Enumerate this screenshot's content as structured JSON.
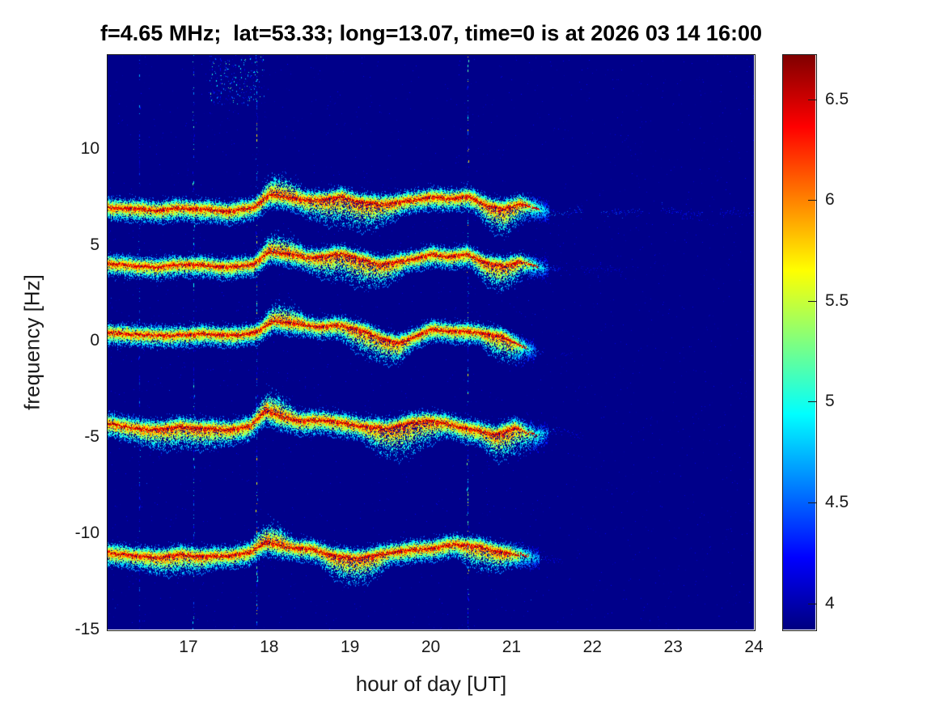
{
  "figure": {
    "background_color": "#ffffff",
    "text_color": "#1a1a1a"
  },
  "chart_data": {
    "type": "heatmap",
    "title": "f=4.65 MHz;  lat=53.33; long=13.07, time=0 is at 2026 03 14 16:00",
    "xlabel": "hour of day [UT]",
    "ylabel": "frequency [Hz]",
    "xlim": [
      16,
      24
    ],
    "ylim": [
      -15,
      14.87
    ],
    "xticks": [
      17,
      18,
      19,
      20,
      21,
      22,
      23,
      24
    ],
    "yticks": [
      10,
      5,
      0,
      -5,
      -10,
      -15
    ],
    "grid": false,
    "legend": "none",
    "colormap": "jet",
    "colorbar": {
      "min": 3.87,
      "max": 6.72,
      "ticks": [
        4,
        4.5,
        5,
        5.5,
        6,
        6.5
      ],
      "position": "right"
    },
    "background_value": 3.9,
    "background_color": "#00008a",
    "traces": [
      {
        "name": "doppler-trace-plus7Hz",
        "points": [
          [
            16,
            6.95
          ],
          [
            16.3,
            6.9
          ],
          [
            16.6,
            6.8
          ],
          [
            16.9,
            6.92
          ],
          [
            17.2,
            6.85
          ],
          [
            17.5,
            6.75
          ],
          [
            17.8,
            6.95
          ],
          [
            18.0,
            7.6
          ],
          [
            18.2,
            7.5
          ],
          [
            18.45,
            7.32
          ],
          [
            18.7,
            7.38
          ],
          [
            18.9,
            7.5
          ],
          [
            19.1,
            7.25
          ],
          [
            19.35,
            7.12
          ],
          [
            19.6,
            7.22
          ],
          [
            19.8,
            7.35
          ],
          [
            20.0,
            7.5
          ],
          [
            20.2,
            7.4
          ],
          [
            20.45,
            7.52
          ],
          [
            20.7,
            7.05
          ],
          [
            20.9,
            6.85
          ],
          [
            21.1,
            7.15
          ],
          [
            21.35,
            6.85
          ],
          [
            21.6,
            6.6
          ],
          [
            22.0,
            6.85
          ],
          [
            22.4,
            6.6
          ],
          [
            22.8,
            6.9
          ],
          [
            23.2,
            6.55
          ],
          [
            23.6,
            6.75
          ],
          [
            24,
            6.6
          ]
        ],
        "fade_start": 21.05,
        "fade_end": 21.5,
        "tail": {
          "level": 0.24,
          "end": 24
        },
        "dips": [
          [
            18.35,
            19.65,
            0.75
          ],
          [
            20.55,
            21.2,
            0.6
          ]
        ],
        "flares": [
          [
            17.85,
            18.45,
            0.5
          ]
        ],
        "spread_above": 0.48,
        "spread_below": 0.62
      },
      {
        "name": "doppler-trace-plus4Hz",
        "points": [
          [
            16,
            4.05
          ],
          [
            16.3,
            3.95
          ],
          [
            16.6,
            3.85
          ],
          [
            16.9,
            4.0
          ],
          [
            17.2,
            3.95
          ],
          [
            17.5,
            3.85
          ],
          [
            17.8,
            4.0
          ],
          [
            18.0,
            4.65
          ],
          [
            18.2,
            4.55
          ],
          [
            18.45,
            4.35
          ],
          [
            18.7,
            4.42
          ],
          [
            18.9,
            4.55
          ],
          [
            19.1,
            4.3
          ],
          [
            19.35,
            4.0
          ],
          [
            19.6,
            4.12
          ],
          [
            19.8,
            4.3
          ],
          [
            20.0,
            4.5
          ],
          [
            20.2,
            4.4
          ],
          [
            20.45,
            4.5
          ],
          [
            20.7,
            4.05
          ],
          [
            20.9,
            3.9
          ],
          [
            21.1,
            4.15
          ],
          [
            21.35,
            3.85
          ],
          [
            21.7,
            3.6
          ],
          [
            22.1,
            3.75
          ],
          [
            22.5,
            3.6
          ]
        ],
        "fade_start": 21.0,
        "fade_end": 21.55,
        "tail": {
          "level": 0.14,
          "end": 22.5
        },
        "dips": [
          [
            18.4,
            19.7,
            0.7
          ],
          [
            20.5,
            21.2,
            0.55
          ]
        ],
        "flares": [
          [
            17.85,
            18.45,
            0.45
          ]
        ],
        "spread_above": 0.45,
        "spread_below": 0.6
      },
      {
        "name": "doppler-trace-0Hz",
        "points": [
          [
            16,
            0.45
          ],
          [
            16.4,
            0.35
          ],
          [
            16.8,
            0.3
          ],
          [
            17.2,
            0.38
          ],
          [
            17.6,
            0.3
          ],
          [
            17.85,
            0.5
          ],
          [
            18.05,
            1.05
          ],
          [
            18.3,
            0.92
          ],
          [
            18.6,
            0.75
          ],
          [
            18.9,
            0.82
          ],
          [
            19.15,
            0.55
          ],
          [
            19.4,
            0.12
          ],
          [
            19.6,
            -0.12
          ],
          [
            19.8,
            0.25
          ],
          [
            20.0,
            0.6
          ],
          [
            20.3,
            0.52
          ],
          [
            20.6,
            0.45
          ],
          [
            20.9,
            0.2
          ],
          [
            21.1,
            -0.2
          ],
          [
            21.35,
            -0.65
          ]
        ],
        "fade_start": 20.9,
        "fade_end": 21.4,
        "tail": {
          "level": 0.12,
          "end": 21.75
        },
        "dips": [
          [
            18.8,
            19.8,
            0.6
          ],
          [
            20.6,
            21.2,
            0.5
          ]
        ],
        "flares": [
          [
            17.9,
            18.45,
            0.45
          ]
        ],
        "spread_above": 0.45,
        "spread_below": 0.58
      },
      {
        "name": "doppler-trace-minus4.5Hz",
        "points": [
          [
            16,
            -4.25
          ],
          [
            16.3,
            -4.5
          ],
          [
            16.6,
            -4.62
          ],
          [
            16.9,
            -4.45
          ],
          [
            17.2,
            -4.55
          ],
          [
            17.5,
            -4.6
          ],
          [
            17.75,
            -4.45
          ],
          [
            17.95,
            -3.6
          ],
          [
            18.15,
            -3.95
          ],
          [
            18.4,
            -4.15
          ],
          [
            18.7,
            -4.1
          ],
          [
            18.95,
            -4.3
          ],
          [
            19.2,
            -4.45
          ],
          [
            19.45,
            -4.55
          ],
          [
            19.7,
            -4.3
          ],
          [
            19.95,
            -4.12
          ],
          [
            20.2,
            -4.3
          ],
          [
            20.5,
            -4.6
          ],
          [
            20.8,
            -4.85
          ],
          [
            21.05,
            -4.5
          ],
          [
            21.3,
            -4.9
          ],
          [
            21.6,
            -4.6
          ],
          [
            21.9,
            -5.0
          ]
        ],
        "fade_start": 20.95,
        "fade_end": 21.55,
        "tail": {
          "level": 0.16,
          "end": 22.0
        },
        "dips": [
          [
            16.3,
            17.6,
            0.35
          ],
          [
            19.15,
            20.15,
            0.85
          ],
          [
            20.6,
            21.3,
            0.65
          ]
        ],
        "flares": [
          [
            17.8,
            18.35,
            0.5
          ]
        ],
        "spread_above": 0.5,
        "spread_below": 0.68
      },
      {
        "name": "doppler-trace-minus11Hz",
        "points": [
          [
            16,
            -11.0
          ],
          [
            16.3,
            -11.15
          ],
          [
            16.6,
            -11.25
          ],
          [
            16.9,
            -11.1
          ],
          [
            17.2,
            -11.2
          ],
          [
            17.5,
            -11.15
          ],
          [
            17.75,
            -11.0
          ],
          [
            17.95,
            -10.45
          ],
          [
            18.2,
            -10.7
          ],
          [
            18.5,
            -10.8
          ],
          [
            18.8,
            -11.15
          ],
          [
            19.05,
            -11.3
          ],
          [
            19.3,
            -11.15
          ],
          [
            19.55,
            -10.95
          ],
          [
            19.8,
            -10.85
          ],
          [
            20.05,
            -10.75
          ],
          [
            20.3,
            -10.55
          ],
          [
            20.6,
            -10.7
          ],
          [
            20.9,
            -11.0
          ],
          [
            21.15,
            -11.15
          ],
          [
            21.45,
            -11.35
          ]
        ],
        "fade_start": 20.9,
        "fade_end": 21.45,
        "tail": {
          "level": 0.12,
          "end": 21.8
        },
        "dips": [
          [
            16.4,
            17.3,
            0.3
          ],
          [
            18.6,
            19.5,
            0.65
          ],
          [
            20.3,
            21.0,
            0.45
          ]
        ],
        "flares": [
          [
            17.75,
            18.3,
            0.5
          ]
        ],
        "spread_above": 0.48,
        "spread_below": 0.62
      }
    ],
    "interference_lines": [
      {
        "hour": 16.4,
        "strength": 0.35
      },
      {
        "hour": 17.07,
        "strength": 0.55
      },
      {
        "hour": 17.85,
        "strength": 0.85
      },
      {
        "hour": 20.46,
        "strength": 0.8
      }
    ],
    "noise_patch": {
      "hour_range": [
        17.25,
        17.95
      ],
      "freq_range": [
        12.3,
        14.87
      ],
      "count": 260
    }
  }
}
